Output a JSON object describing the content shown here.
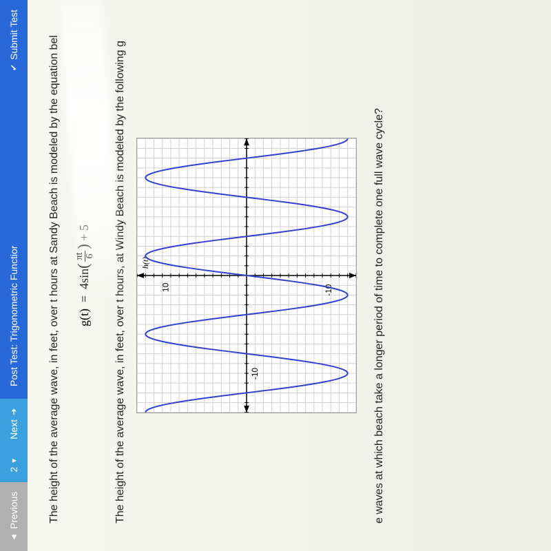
{
  "topbar": {
    "prev": "Previous",
    "num": "2",
    "next": "Next",
    "title": "Post Test: Trigonometric Functior",
    "submit": "Submit Test"
  },
  "text": {
    "line1": "The height of the average wave, in feet, over t hours at Sandy Beach is modeled by the equation bel",
    "eq_lhs": "g(t)",
    "eq_eq": "=",
    "eq_coef": "4sin",
    "eq_frac_n": "πt",
    "eq_frac_d": "6",
    "eq_plus": "+ 5",
    "line2": "The height of the average wave, in feet, over t hours, at Windy Beach is modeled by the following g",
    "question": "e waves at which beach take a longer period of time to complete one full wave cycle?"
  },
  "chart": {
    "type": "line",
    "axis_label": "h(t)",
    "y_ticks": [
      10,
      -10
    ],
    "x_tick": -10,
    "xlim": [
      -14,
      14
    ],
    "ylim": [
      -13,
      13
    ],
    "grid_step": 1,
    "background_color": "#ffffff",
    "grid_color": "#d0d0d0",
    "axis_color": "#000000",
    "curve_color": "#3040d0",
    "curve_width": 2,
    "amplitude": 12,
    "midline": 0,
    "period": 8,
    "phase": 0
  }
}
